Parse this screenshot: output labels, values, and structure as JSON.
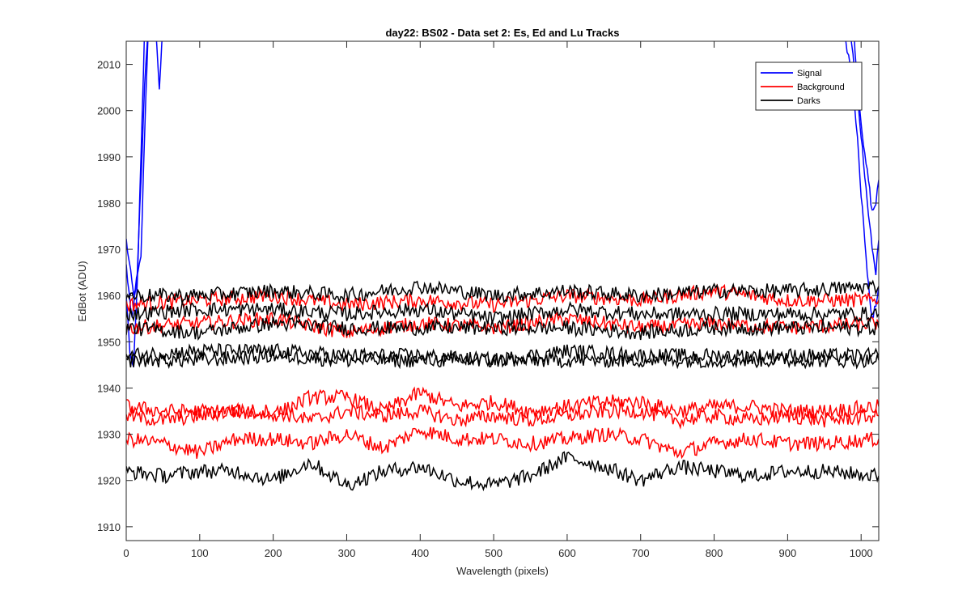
{
  "chart_data": {
    "type": "line",
    "title": "day22: BS02 - Data set 2: Es, Ed and Lu Tracks",
    "xlabel": "Wavelength (pixels)",
    "ylabel": "EdBot (ADU)",
    "xlim": [
      0,
      1024
    ],
    "ylim": [
      1907,
      2015
    ],
    "xticks": [
      0,
      100,
      200,
      300,
      400,
      500,
      600,
      700,
      800,
      900,
      1000
    ],
    "yticks": [
      1910,
      1920,
      1930,
      1940,
      1950,
      1960,
      1970,
      1980,
      1990,
      2000,
      2010
    ],
    "grid": false,
    "legend_position": "top-right",
    "legend": [
      {
        "name": "Signal",
        "color": "#0000ff"
      },
      {
        "name": "Background",
        "color": "#ff0000"
      },
      {
        "name": "Darks",
        "color": "#000000"
      }
    ],
    "series": [
      {
        "group": "Signal",
        "color": "#0000ff",
        "x": [
          0,
          10,
          20,
          25,
          30,
          40,
          45,
          50,
          960,
          975,
          985,
          990,
          995,
          1000,
          1005,
          1010,
          1015,
          1020,
          1024
        ],
        "y": [
          1972,
          1960,
          1968,
          1995,
          2018,
          2018,
          2005,
          2018,
          2018,
          2018,
          2018,
          2018,
          2005,
          1998,
          1990,
          1985,
          1978,
          1980,
          1985
        ]
      },
      {
        "group": "Signal",
        "color": "#0000ff",
        "x": [
          0,
          8,
          15,
          20,
          25,
          30,
          35,
          960,
          975,
          985,
          993,
          1000,
          1005,
          1010,
          1015,
          1020,
          1024
        ],
        "y": [
          1966,
          1955,
          1965,
          1985,
          2005,
          2018,
          2018,
          2018,
          2018,
          2018,
          2005,
          1995,
          1985,
          1978,
          1970,
          1965,
          1972
        ]
      },
      {
        "group": "Signal",
        "color": "#0000ff",
        "x": [
          0,
          5,
          10,
          15,
          20,
          25,
          960,
          975,
          985,
          995,
          1000,
          1005,
          1010,
          1015,
          1020,
          1024
        ],
        "y": [
          1960,
          1948,
          1945,
          1962,
          1990,
          2018,
          2018,
          2018,
          2010,
          1995,
          1982,
          1972,
          1962,
          1955,
          1958,
          1962
        ]
      },
      {
        "group": "Background",
        "color": "#ff0000",
        "x": [
          0,
          100,
          200,
          300,
          400,
          500,
          600,
          700,
          800,
          900,
          1024
        ],
        "y": [
          1958,
          1959,
          1960,
          1958,
          1959,
          1958,
          1960,
          1959,
          1961,
          1959,
          1959
        ]
      },
      {
        "group": "Background",
        "color": "#ff0000",
        "x": [
          0,
          100,
          200,
          300,
          400,
          500,
          600,
          700,
          800,
          900,
          1024
        ],
        "y": [
          1953,
          1954,
          1955,
          1952,
          1954,
          1953,
          1955,
          1953,
          1954,
          1953,
          1954
        ]
      },
      {
        "group": "Background",
        "color": "#ff0000",
        "x": [
          0,
          50,
          100,
          150,
          200,
          250,
          300,
          350,
          400,
          450,
          500,
          550,
          600,
          650,
          700,
          750,
          800,
          850,
          900,
          950,
          1024
        ],
        "y": [
          1936,
          1935,
          1935,
          1935,
          1934,
          1938,
          1938,
          1935,
          1939,
          1936,
          1937,
          1935,
          1936,
          1937,
          1937,
          1935,
          1936,
          1936,
          1935,
          1935,
          1936
        ]
      },
      {
        "group": "Background",
        "color": "#ff0000",
        "x": [
          0,
          50,
          100,
          150,
          200,
          250,
          300,
          350,
          400,
          450,
          500,
          550,
          600,
          650,
          700,
          750,
          800,
          850,
          900,
          950,
          1024
        ],
        "y": [
          1934,
          1933,
          1934,
          1935,
          1935,
          1933,
          1935,
          1934,
          1935,
          1933,
          1934,
          1933,
          1934,
          1935,
          1935,
          1933,
          1934,
          1933,
          1934,
          1933,
          1934
        ]
      },
      {
        "group": "Background",
        "color": "#ff0000",
        "x": [
          0,
          50,
          100,
          150,
          200,
          250,
          300,
          350,
          400,
          450,
          500,
          550,
          600,
          650,
          700,
          750,
          800,
          850,
          900,
          950,
          1024
        ],
        "y": [
          1929,
          1928,
          1926,
          1929,
          1929,
          1928,
          1930,
          1927,
          1931,
          1929,
          1929,
          1928,
          1929,
          1930,
          1929,
          1926,
          1928,
          1929,
          1928,
          1928,
          1929
        ]
      },
      {
        "group": "Darks",
        "color": "#000000",
        "x": [
          0,
          100,
          200,
          300,
          400,
          500,
          600,
          700,
          800,
          900,
          1024
        ],
        "y": [
          1960,
          1960,
          1961,
          1960,
          1962,
          1960,
          1961,
          1960,
          1961,
          1961,
          1962
        ]
      },
      {
        "group": "Darks",
        "color": "#000000",
        "x": [
          0,
          100,
          200,
          300,
          400,
          500,
          600,
          700,
          800,
          900,
          1024
        ],
        "y": [
          1956,
          1957,
          1957,
          1956,
          1957,
          1955,
          1957,
          1956,
          1956,
          1956,
          1956
        ]
      },
      {
        "group": "Darks",
        "color": "#000000",
        "x": [
          0,
          100,
          200,
          300,
          400,
          500,
          600,
          700,
          800,
          900,
          1024
        ],
        "y": [
          1953,
          1952,
          1954,
          1953,
          1953,
          1953,
          1953,
          1952,
          1953,
          1953,
          1953
        ]
      },
      {
        "group": "Darks",
        "color": "#000000",
        "x": [
          0,
          100,
          200,
          300,
          400,
          500,
          600,
          700,
          800,
          900,
          1024
        ],
        "y": [
          1947,
          1948,
          1948,
          1947,
          1947,
          1946,
          1948,
          1947,
          1947,
          1947,
          1947
        ]
      },
      {
        "group": "Darks",
        "color": "#000000",
        "x": [
          0,
          100,
          200,
          300,
          400,
          500,
          600,
          700,
          800,
          900,
          1024
        ],
        "y": [
          1946,
          1946,
          1947,
          1946,
          1946,
          1946,
          1946,
          1946,
          1946,
          1946,
          1946
        ]
      },
      {
        "group": "Darks",
        "color": "#000000",
        "x": [
          0,
          50,
          100,
          150,
          200,
          250,
          300,
          350,
          400,
          450,
          500,
          550,
          600,
          650,
          700,
          750,
          800,
          850,
          900,
          950,
          1024
        ],
        "y": [
          1922,
          1921,
          1922,
          1922,
          1920,
          1924,
          1919,
          1922,
          1923,
          1920,
          1919,
          1921,
          1925,
          1923,
          1920,
          1923,
          1922,
          1921,
          1922,
          1922,
          1921
        ]
      }
    ]
  }
}
